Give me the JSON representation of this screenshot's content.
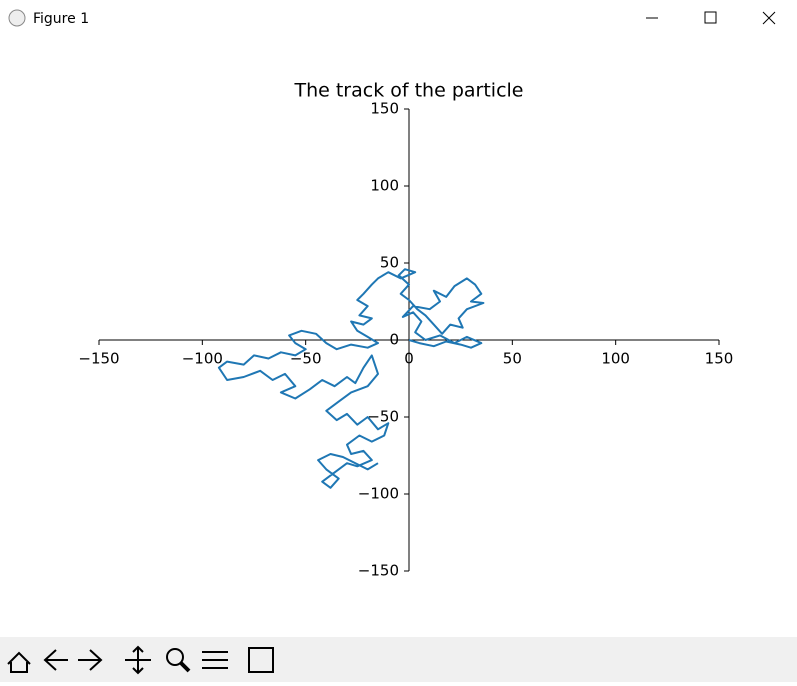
{
  "window": {
    "title": "Figure 1"
  },
  "chart_data": {
    "type": "line",
    "title": "The track of the particle",
    "color": "#1f77b4",
    "x": [
      0,
      5,
      12,
      18,
      25,
      30,
      35,
      28,
      22,
      15,
      8,
      3,
      6,
      2,
      -3,
      2,
      10,
      15,
      12,
      18,
      22,
      28,
      32,
      35,
      30,
      36,
      28,
      24,
      26,
      20,
      16,
      12,
      8,
      4,
      0,
      -4,
      0,
      -5,
      -2,
      3,
      -4,
      -10,
      -15,
      -18,
      -22,
      -25,
      -20,
      -24,
      -18,
      -22,
      -28,
      -25,
      -20,
      -15,
      -20,
      -28,
      -35,
      -40,
      -45,
      -52,
      -58,
      -55,
      -50,
      -55,
      -62,
      -68,
      -75,
      -80,
      -88,
      -92,
      -88,
      -80,
      -72,
      -66,
      -60,
      -55,
      -62,
      -55,
      -48,
      -42,
      -36,
      -30,
      -26,
      -22,
      -18,
      -15,
      -20,
      -28,
      -34,
      -40,
      -35,
      -30,
      -25,
      -20,
      -15,
      -10,
      -12,
      -18,
      -24,
      -30,
      -28,
      -22,
      -18,
      -25,
      -30,
      -36,
      -42,
      -38,
      -34,
      -40,
      -44,
      -38,
      -32,
      -20,
      -15
    ],
    "values": [
      0,
      -2,
      -4,
      -1,
      -3,
      -5,
      -2,
      2,
      -2,
      3,
      0,
      5,
      12,
      18,
      15,
      22,
      20,
      25,
      32,
      28,
      35,
      40,
      36,
      30,
      25,
      24,
      20,
      14,
      8,
      10,
      4,
      10,
      16,
      20,
      26,
      30,
      36,
      42,
      46,
      44,
      40,
      44,
      40,
      36,
      30,
      26,
      22,
      16,
      14,
      10,
      12,
      6,
      2,
      -2,
      -5,
      -3,
      -6,
      -2,
      4,
      6,
      3,
      -2,
      -6,
      -10,
      -8,
      -12,
      -10,
      -16,
      -14,
      -18,
      -26,
      -24,
      -20,
      -26,
      -22,
      -30,
      -34,
      -38,
      -32,
      -26,
      -30,
      -24,
      -28,
      -18,
      -10,
      -22,
      -30,
      -34,
      -40,
      -46,
      -52,
      -48,
      -55,
      -50,
      -58,
      -54,
      -62,
      -66,
      -62,
      -68,
      -74,
      -72,
      -78,
      -82,
      -80,
      -86,
      -92,
      -96,
      -90,
      -84,
      -78,
      -74,
      -76,
      -84,
      -80
    ],
    "xlim": [
      -150,
      150
    ],
    "ylim": [
      -150,
      150
    ],
    "xticks": [
      {
        "value": -150,
        "label": "−150"
      },
      {
        "value": -100,
        "label": "−100"
      },
      {
        "value": -50,
        "label": "−50"
      },
      0,
      50,
      100,
      150
    ],
    "yticks": [
      {
        "value": -150,
        "label": "−150"
      },
      {
        "value": -100,
        "label": "−100"
      },
      {
        "value": -50,
        "label": "−50"
      },
      0,
      50,
      100,
      150
    ]
  }
}
